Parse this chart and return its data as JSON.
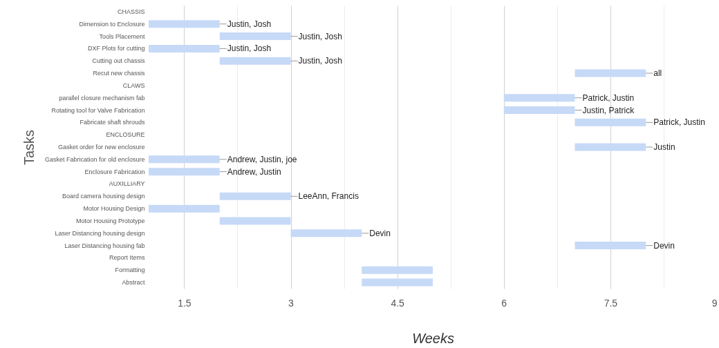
{
  "chart_data": {
    "type": "bar",
    "orientation": "horizontal",
    "xlabel": "Weeks",
    "ylabel": "Tasks",
    "categories": [
      "CHASSIS",
      "Dimension to Enclosure",
      "Tools Placement",
      "DXF Plots for cutting",
      "Cutting out chassis",
      "Recut new chassis",
      "CLAWS",
      "parallel closure mechanism fab",
      "Rotating tool for Valve Fabrication",
      "Fabricate shaft shrouds",
      "ENCLOSURE",
      "Gasket order for new enclosure",
      "Gasket Fabrication for old enclosure",
      "Enclosure Fabrication",
      "AUXILLIARY",
      "Board camera housing design",
      "Motor Housing Design",
      "Motor Housing Prototype",
      "Laser Distancing housing design",
      "Laser Distancing housing fab",
      "Report Items",
      "Formatting",
      "Abstract"
    ],
    "base": [
      null,
      1,
      2,
      1,
      2,
      7,
      null,
      6,
      6,
      7,
      null,
      7,
      1,
      1,
      null,
      2,
      1,
      2,
      3,
      7,
      null,
      4,
      4
    ],
    "values": [
      null,
      1,
      1,
      1,
      1,
      1,
      null,
      1,
      1,
      1,
      null,
      1,
      1,
      1,
      null,
      1,
      1,
      1,
      1,
      1,
      null,
      1,
      1
    ],
    "color": "#c6d9f7",
    "xlim": [
      1,
      9
    ],
    "xticks": [
      1.5,
      {
        "value": 2.25,
        "label": null
      },
      3,
      {
        "value": 3.75,
        "label": null
      },
      4.5,
      {
        "value": 5.25,
        "label": null
      },
      6,
      {
        "value": 6.75,
        "label": null
      },
      7.5,
      {
        "value": 8.25,
        "label": null
      },
      9
    ],
    "grid": "x",
    "annotations": [
      {
        "text": "Justin, Josh",
        "x": 2,
        "y": "Dimension to Enclosure"
      },
      {
        "text": "Justin, Josh",
        "x": 3,
        "y": "Tools Placement"
      },
      {
        "text": "Justin, Josh",
        "x": 2,
        "y": "DXF Plots for cutting"
      },
      {
        "text": "Justin, Josh",
        "x": 3,
        "y": "Cutting out chassis"
      },
      {
        "text": "all",
        "x": 8,
        "y": "Recut new chassis"
      },
      {
        "text": "Patrick, Justin",
        "x": 7,
        "y": "parallel closure mechanism fab"
      },
      {
        "text": "Justin, Patrick",
        "x": 7,
        "y": "Rotating tool for Valve Fabrication"
      },
      {
        "text": "Patrick, Justin",
        "x": 8,
        "y": "Fabricate shaft shrouds"
      },
      {
        "text": "Justin",
        "x": 8,
        "y": "Gasket order for new enclosure"
      },
      {
        "text": "Andrew, Justin, joe",
        "x": 2,
        "y": "Gasket Fabrication for old enclosure"
      },
      {
        "text": "Andrew, Justin",
        "x": 2,
        "y": "Enclosure Fabrication"
      },
      {
        "text": "LeeAnn, Francis",
        "x": 3,
        "y": "Board camera housing design"
      },
      {
        "text": "Devin",
        "x": 4,
        "y": "Laser Distancing housing design"
      },
      {
        "text": "Devin",
        "x": 8,
        "y": "Laser Distancing housing fab"
      }
    ]
  }
}
